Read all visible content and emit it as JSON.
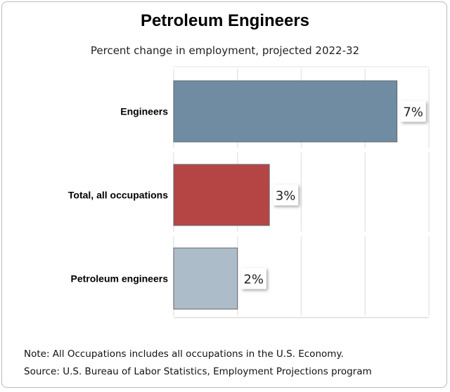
{
  "chart_data": {
    "type": "bar",
    "orientation": "horizontal",
    "title": "Petroleum Engineers",
    "subtitle": "Percent change in employment, projected 2022-32",
    "categories": [
      "Engineers",
      "Total, all occupations",
      "Petroleum engineers"
    ],
    "values": [
      7,
      3,
      2
    ],
    "data_labels": [
      "7%",
      "3%",
      "2%"
    ],
    "colors": [
      "#6f8ca3",
      "#b54545",
      "#adbcc9"
    ],
    "xlim": [
      0,
      8
    ],
    "grid": true,
    "legend": "none"
  },
  "notes": {
    "note": "Note: All Occupations includes all occupations in the U.S. Economy.",
    "source": "Source: U.S. Bureau of Labor Statistics, Employment Projections program"
  }
}
